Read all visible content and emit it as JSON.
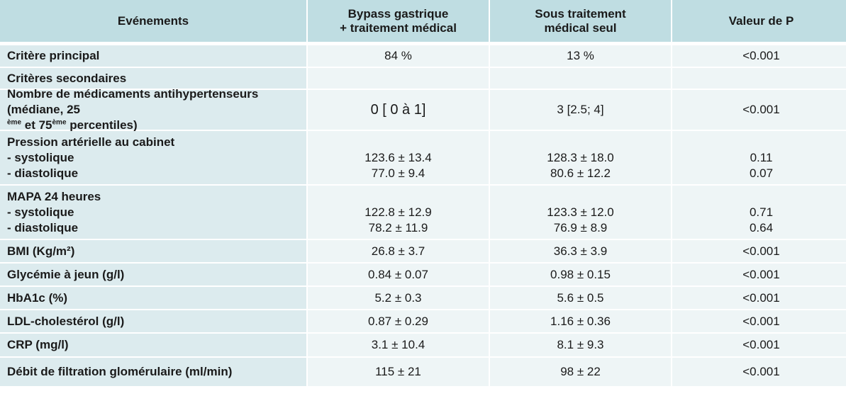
{
  "headers": {
    "col0": "Evénements",
    "col1_line1": "Bypass gastrique",
    "col1_line2": "+ traitement médical",
    "col2_line1": "Sous traitement",
    "col2_line2": "médical seul",
    "col3": "Valeur de P"
  },
  "rows": [
    {
      "label": "Critère principal",
      "bypass": "84 %",
      "medical": "13 %",
      "p": "<0.001"
    },
    {
      "label": "Critères secondaires",
      "bypass": "",
      "medical": "",
      "p": ""
    },
    {
      "label_line1": "Nombre de médicaments antihypertenseurs",
      "label_line2_a": "(médiane, 25",
      "sup1": "ème",
      "label_line2_b": " et 75",
      "sup2": "ème",
      "label_line2_c": " percentiles)",
      "bypass": "0 [ 0 à 1]",
      "medical": "3 [2.5; 4]",
      "p": "<0.001"
    },
    {
      "label_line1": "Pression artérielle au cabinet",
      "label_line2": "- systolique",
      "label_line3": "- diastolique",
      "bypass_sys": "123.6 ± 13.4",
      "bypass_dia": "77.0 ± 9.4",
      "medical_sys": "128.3 ± 18.0",
      "medical_dia": "80.6 ± 12.2",
      "p_sys": "0.11",
      "p_dia": "0.07"
    },
    {
      "label_line1": "MAPA 24 heures",
      "label_line2": "- systolique",
      "label_line3": "- diastolique",
      "bypass_sys": "122.8 ± 12.9",
      "bypass_dia": "78.2 ± 11.9",
      "medical_sys": "123.3 ± 12.0",
      "medical_dia": "76.9 ± 8.9",
      "p_sys": "0.71",
      "p_dia": "0.64"
    },
    {
      "label": "BMI (Kg/m²)",
      "bypass": "26.8 ± 3.7",
      "medical": "36.3 ± 3.9",
      "p": "<0.001"
    },
    {
      "label": "Glycémie à jeun (g/l)",
      "bypass": "0.84 ± 0.07",
      "medical": "0.98 ± 0.15",
      "p": "<0.001"
    },
    {
      "label": "HbA1c (%)",
      "bypass": "5.2 ± 0.3",
      "medical": "5.6 ± 0.5",
      "p": "<0.001"
    },
    {
      "label": "LDL-cholestérol (g/l)",
      "bypass": "0.87 ± 0.29",
      "medical": "1.16 ± 0.36",
      "p": "<0.001"
    },
    {
      "label": "CRP (mg/l)",
      "bypass": "3.1 ± 10.4",
      "medical": "8.1 ± 9.3",
      "p": "<0.001"
    },
    {
      "label": "Débit de filtration glomérulaire (ml/min)",
      "bypass": "115 ± 21",
      "medical": "98 ± 22",
      "p": "<0.001"
    }
  ]
}
